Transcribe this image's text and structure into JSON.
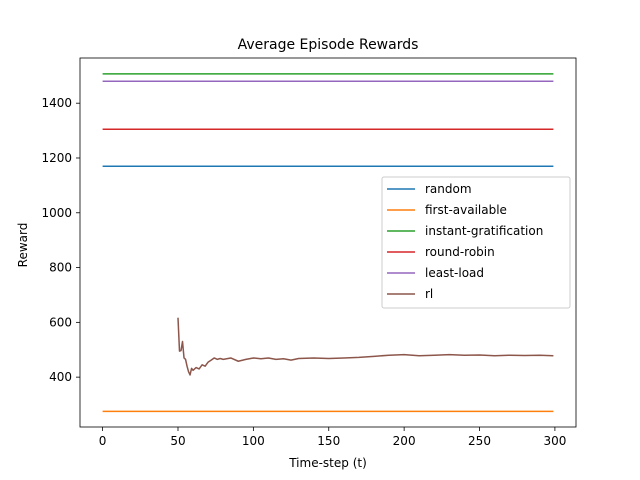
{
  "chart_data": {
    "type": "line",
    "title": "Average Episode Rewards",
    "xlabel": "Time-step (t)",
    "ylabel": "Reward",
    "xlim": [
      -15,
      314
    ],
    "ylim": [
      218,
      1565
    ],
    "xticks": [
      0,
      50,
      100,
      150,
      200,
      250,
      300
    ],
    "yticks": [
      400,
      600,
      800,
      1000,
      1200,
      1400
    ],
    "grid": false,
    "legend_position": "center-right",
    "series": [
      {
        "name": "random",
        "color": "#1f77b4",
        "x": [
          0,
          299
        ],
        "y": [
          1170,
          1170
        ]
      },
      {
        "name": "first-available",
        "color": "#ff7f0e",
        "x": [
          0,
          299
        ],
        "y": [
          275,
          275
        ]
      },
      {
        "name": "instant-gratification",
        "color": "#2ca02c",
        "x": [
          0,
          299
        ],
        "y": [
          1507,
          1507
        ]
      },
      {
        "name": "round-robin",
        "color": "#d62728",
        "x": [
          0,
          299
        ],
        "y": [
          1305,
          1305
        ]
      },
      {
        "name": "least-load",
        "color": "#9467bd",
        "x": [
          0,
          299
        ],
        "y": [
          1480,
          1480
        ]
      },
      {
        "name": "rl",
        "color": "#8c564b",
        "x": [
          50,
          51,
          52,
          53,
          54,
          55,
          56,
          57,
          58,
          59,
          60,
          62,
          64,
          66,
          68,
          70,
          72,
          74,
          76,
          78,
          80,
          85,
          90,
          95,
          100,
          105,
          110,
          115,
          120,
          125,
          130,
          140,
          150,
          160,
          170,
          180,
          190,
          200,
          210,
          220,
          230,
          240,
          250,
          260,
          270,
          280,
          290,
          299
        ],
        "y": [
          617,
          495,
          497,
          530,
          470,
          465,
          440,
          420,
          408,
          432,
          425,
          435,
          430,
          445,
          440,
          455,
          462,
          470,
          465,
          468,
          465,
          470,
          458,
          465,
          470,
          467,
          470,
          465,
          467,
          462,
          468,
          470,
          468,
          470,
          472,
          476,
          480,
          482,
          478,
          480,
          482,
          480,
          481,
          478,
          480,
          479,
          480,
          478
        ]
      }
    ]
  }
}
